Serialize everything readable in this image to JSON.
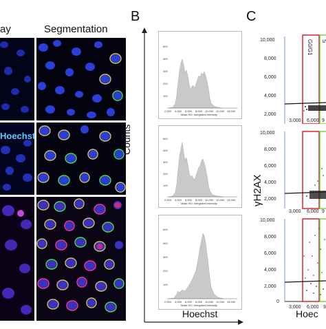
{
  "panelA": {
    "overlay_heading_fragment": "ay",
    "segmentation_heading": "Segmentation",
    "row_label_fragment": "Hoechst"
  },
  "panelB": {
    "letter": "B",
    "ylabel": "Counts",
    "xlabel": "Hoechst",
    "histograms": [
      {
        "xaxis_title": "Mask HO: Integrated Intensity",
        "xticks": [
          "2,000",
          "4,000",
          "6,000",
          "8,000",
          "10,000",
          "12,000",
          "14,000"
        ],
        "yticks": [
          "100",
          "200",
          "300",
          "400",
          "500"
        ]
      },
      {
        "xaxis_title": "Mask HO: Integrated Intensity",
        "xticks": [
          "2,000",
          "4,000",
          "6,000",
          "8,000",
          "10,000",
          "12,000",
          "14,000"
        ],
        "yticks": [
          "100",
          "200",
          "300",
          "400",
          "500"
        ]
      },
      {
        "xaxis_title": "Mask HO: Integrated Intensity",
        "xticks": [
          "2,000",
          "4,000",
          "6,000",
          "8,000",
          "10,000",
          "12,000",
          "14,000"
        ],
        "yticks": [
          "100",
          "200",
          "300",
          "400",
          "500"
        ]
      }
    ]
  },
  "panelC": {
    "letter": "C",
    "ylabel": "γH2AX",
    "xlabel_fragment": "Hoec",
    "gate_g0g1": "G0/G1",
    "gate_s": "S",
    "plots": [
      {
        "yticks": [
          "10,000",
          "8,000",
          "6,000",
          "4,000",
          "2,000"
        ],
        "xticks": [
          "3,000",
          "6,000",
          "9"
        ]
      },
      {
        "yticks": [
          "10,000",
          "8,000",
          "6,000",
          "4,000",
          "2,000"
        ],
        "xticks": [
          "3,000",
          "6,000",
          "9"
        ]
      },
      {
        "yticks": [
          "10,000",
          "8,000",
          "6,000",
          "4,000",
          "2,000",
          "0"
        ],
        "xticks": [
          "3,000",
          "6,000",
          "9"
        ]
      }
    ]
  },
  "colors": {
    "nucleus_blue": "#2b3fd6",
    "seg_yellow": "#d9c36a",
    "seg_green": "#55e055",
    "seg_magenta": "#ff3aa8",
    "gate_red": "#e0141c",
    "gate_green": "#6dcf3a",
    "gate_blue": "#7a8fd8"
  }
}
